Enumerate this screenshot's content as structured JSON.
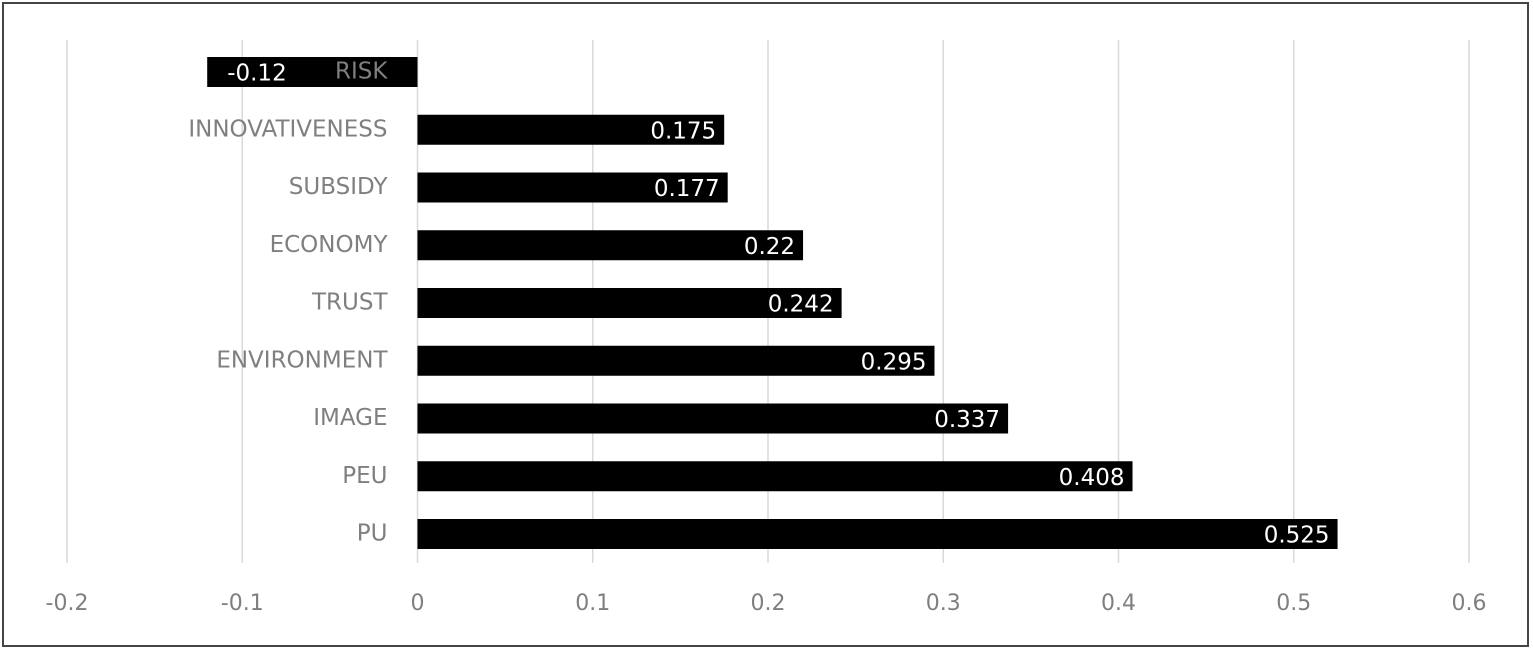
{
  "chart_data": {
    "type": "bar",
    "orientation": "horizontal",
    "categories": [
      "RISK",
      "INNOVATIVENESS",
      "SUBSIDY",
      "ECONOMY",
      "TRUST",
      "ENVIRONMENT",
      "IMAGE",
      "PEU",
      "PU"
    ],
    "values": [
      -0.12,
      0.175,
      0.177,
      0.22,
      0.242,
      0.295,
      0.337,
      0.408,
      0.525
    ],
    "color": "#000000",
    "xlim": [
      -0.2,
      0.6
    ],
    "xticks": [
      -0.2,
      -0.1,
      0,
      0.1,
      0.2,
      0.3,
      0.4,
      0.5,
      0.6
    ],
    "grid": true
  }
}
